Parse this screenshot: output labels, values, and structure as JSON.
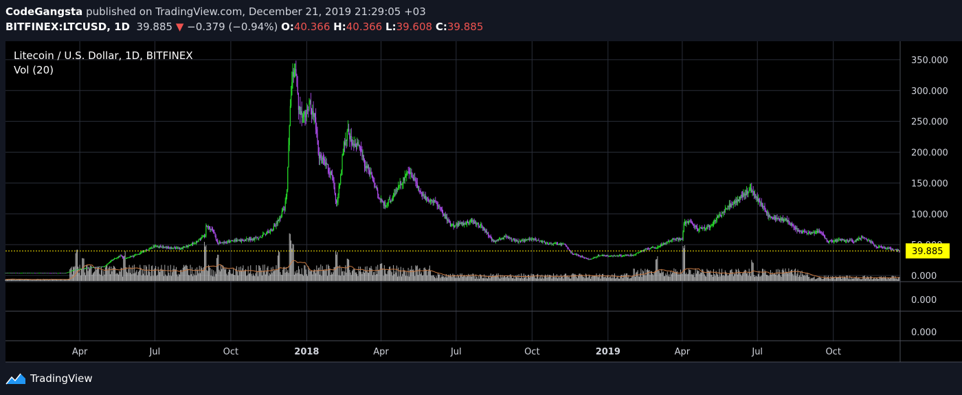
{
  "header": {
    "author": "CodeGangsta",
    "published_text": "published on TradingView.com, December 21, 2019 21:29:05 +03",
    "symbol": "BITFINEX:LTCUSD, 1D",
    "last": "39.885",
    "change": "−0.379 (−0.94%)",
    "open_label": "O:",
    "open": "40.366",
    "high_label": "H:",
    "high": "40.366",
    "low_label": "L:",
    "low": "39.608",
    "close_label": "C:",
    "close": "39.885"
  },
  "legend": {
    "title": "Litecoin / U.S. Dollar, 1D, BITFINEX",
    "vol": "Vol (20)"
  },
  "footer": {
    "brand": "TradingView"
  },
  "colors": {
    "background": "#000000",
    "page": "#131722",
    "grid": "#2a2e39",
    "up": "#26e02a",
    "down": "#b04ff0",
    "volume": "#c8c8c8",
    "volume_ma": "#c87840",
    "price_label_bg": "#ffff00",
    "last_price_line": "#ffea00"
  },
  "chart_data": {
    "type": "candlestick",
    "title": "Litecoin / U.S. Dollar, 1D, BITFINEX",
    "last_price": 39.885,
    "last_price_label": "39.885",
    "y_ticks": [
      "350.000",
      "300.000",
      "250.000",
      "200.000",
      "150.000",
      "100.000",
      "50.000",
      "0.000"
    ],
    "y_tick_values": [
      350,
      300,
      250,
      200,
      150,
      100,
      50,
      0
    ],
    "ylim": [
      -10,
      380
    ],
    "x_ticks": [
      {
        "label": "Apr",
        "date": "2017-04-01",
        "bold": false
      },
      {
        "label": "Jul",
        "date": "2017-07-01",
        "bold": false
      },
      {
        "label": "Oct",
        "date": "2017-10-01",
        "bold": false
      },
      {
        "label": "2018",
        "date": "2018-01-01",
        "bold": true
      },
      {
        "label": "Apr",
        "date": "2018-04-01",
        "bold": false
      },
      {
        "label": "Jul",
        "date": "2018-07-01",
        "bold": false
      },
      {
        "label": "Oct",
        "date": "2018-10-01",
        "bold": false
      },
      {
        "label": "2019",
        "date": "2019-01-01",
        "bold": true
      },
      {
        "label": "Apr",
        "date": "2019-04-01",
        "bold": false
      },
      {
        "label": "Jul",
        "date": "2019-07-01",
        "bold": false
      },
      {
        "label": "Oct",
        "date": "2019-10-01",
        "bold": false
      }
    ],
    "xlim": [
      "2017-01-01",
      "2019-12-21"
    ],
    "close_path": [
      [
        "2017-01-01",
        4.2
      ],
      [
        "2017-03-15",
        4.0
      ],
      [
        "2017-03-25",
        9
      ],
      [
        "2017-04-10",
        12
      ],
      [
        "2017-05-01",
        15
      ],
      [
        "2017-05-10",
        25
      ],
      [
        "2017-05-20",
        32
      ],
      [
        "2017-05-25",
        28
      ],
      [
        "2017-06-05",
        31
      ],
      [
        "2017-06-15",
        38
      ],
      [
        "2017-07-01",
        48
      ],
      [
        "2017-07-10",
        46
      ],
      [
        "2017-07-20",
        45
      ],
      [
        "2017-08-01",
        44
      ],
      [
        "2017-08-10",
        48
      ],
      [
        "2017-08-20",
        55
      ],
      [
        "2017-08-31",
        65
      ],
      [
        "2017-09-01",
        84
      ],
      [
        "2017-09-05",
        78
      ],
      [
        "2017-09-10",
        70
      ],
      [
        "2017-09-15",
        52
      ],
      [
        "2017-09-20",
        54
      ],
      [
        "2017-10-01",
        55
      ],
      [
        "2017-10-20",
        58
      ],
      [
        "2017-11-01",
        60
      ],
      [
        "2017-11-10",
        66
      ],
      [
        "2017-11-20",
        75
      ],
      [
        "2017-11-28",
        90
      ],
      [
        "2017-12-05",
        110
      ],
      [
        "2017-12-08",
        140
      ],
      [
        "2017-12-11",
        240
      ],
      [
        "2017-12-13",
        300
      ],
      [
        "2017-12-17",
        345
      ],
      [
        "2017-12-19",
        330
      ],
      [
        "2017-12-22",
        270
      ],
      [
        "2017-12-28",
        260
      ],
      [
        "2018-01-05",
        275
      ],
      [
        "2018-01-10",
        260
      ],
      [
        "2018-01-16",
        190
      ],
      [
        "2018-01-22",
        185
      ],
      [
        "2018-02-01",
        160
      ],
      [
        "2018-02-06",
        115
      ],
      [
        "2018-02-10",
        150
      ],
      [
        "2018-02-15",
        215
      ],
      [
        "2018-02-20",
        230
      ],
      [
        "2018-02-25",
        215
      ],
      [
        "2018-03-05",
        210
      ],
      [
        "2018-03-12",
        180
      ],
      [
        "2018-03-20",
        165
      ],
      [
        "2018-03-30",
        125
      ],
      [
        "2018-04-05",
        115
      ],
      [
        "2018-04-15",
        125
      ],
      [
        "2018-04-25",
        150
      ],
      [
        "2018-05-05",
        170
      ],
      [
        "2018-05-10",
        160
      ],
      [
        "2018-05-20",
        130
      ],
      [
        "2018-06-01",
        120
      ],
      [
        "2018-06-10",
        115
      ],
      [
        "2018-06-15",
        100
      ],
      [
        "2018-06-25",
        80
      ],
      [
        "2018-07-05",
        83
      ],
      [
        "2018-07-20",
        88
      ],
      [
        "2018-08-01",
        80
      ],
      [
        "2018-08-15",
        55
      ],
      [
        "2018-08-30",
        62
      ],
      [
        "2018-09-15",
        55
      ],
      [
        "2018-10-01",
        60
      ],
      [
        "2018-10-20",
        52
      ],
      [
        "2018-11-10",
        50
      ],
      [
        "2018-11-19",
        35
      ],
      [
        "2018-11-25",
        33
      ],
      [
        "2018-12-10",
        26
      ],
      [
        "2018-12-20",
        32
      ],
      [
        "2019-01-01",
        32
      ],
      [
        "2019-01-20",
        32
      ],
      [
        "2019-02-01",
        33
      ],
      [
        "2019-02-15",
        42
      ],
      [
        "2019-03-01",
        46
      ],
      [
        "2019-03-20",
        58
      ],
      [
        "2019-04-01",
        60
      ],
      [
        "2019-04-03",
        85
      ],
      [
        "2019-04-10",
        88
      ],
      [
        "2019-04-20",
        75
      ],
      [
        "2019-05-05",
        80
      ],
      [
        "2019-05-15",
        95
      ],
      [
        "2019-05-25",
        110
      ],
      [
        "2019-06-10",
        125
      ],
      [
        "2019-06-22",
        140
      ],
      [
        "2019-06-27",
        130
      ],
      [
        "2019-07-05",
        118
      ],
      [
        "2019-07-15",
        95
      ],
      [
        "2019-07-25",
        92
      ],
      [
        "2019-08-05",
        90
      ],
      [
        "2019-08-20",
        72
      ],
      [
        "2019-09-01",
        68
      ],
      [
        "2019-09-15",
        72
      ],
      [
        "2019-09-24",
        55
      ],
      [
        "2019-10-10",
        58
      ],
      [
        "2019-10-25",
        55
      ],
      [
        "2019-11-05",
        62
      ],
      [
        "2019-11-15",
        55
      ],
      [
        "2019-11-22",
        47
      ],
      [
        "2019-12-01",
        45
      ],
      [
        "2019-12-10",
        43
      ],
      [
        "2019-12-21",
        39.885
      ]
    ],
    "volume_spikes": [
      [
        "2017-03-28",
        0.6
      ],
      [
        "2017-04-05",
        0.5
      ],
      [
        "2017-05-25",
        0.55
      ],
      [
        "2017-08-31",
        0.72
      ],
      [
        "2017-09-15",
        0.48
      ],
      [
        "2017-11-28",
        0.56
      ],
      [
        "2017-12-12",
        0.9
      ],
      [
        "2017-12-15",
        0.7
      ],
      [
        "2018-02-06",
        0.58
      ],
      [
        "2018-02-20",
        0.42
      ],
      [
        "2018-04-01",
        0.36
      ],
      [
        "2019-04-03",
        0.72
      ],
      [
        "2019-03-01",
        0.45
      ],
      [
        "2019-06-25",
        0.4
      ]
    ]
  }
}
